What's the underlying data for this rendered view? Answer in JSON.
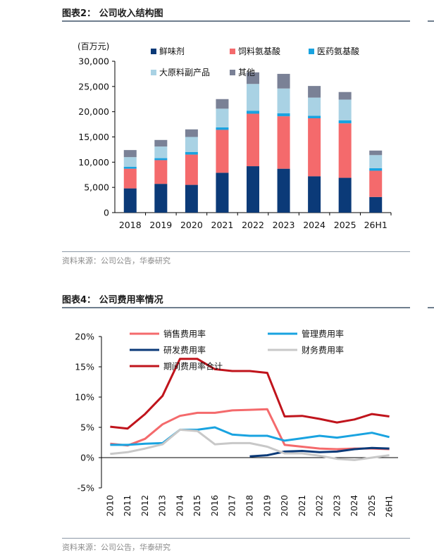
{
  "figure2": {
    "title": "图表2：  公司收入结构图",
    "source": "资料来源：公司公告，华泰研究"
  },
  "figure4": {
    "title": "图表4：  公司费用率情况",
    "source": "资料来源：公司公告，华泰研究"
  },
  "chart_data": [
    {
      "type": "bar",
      "stacked": true,
      "unit_label": "(百万元)",
      "categories": [
        "2018",
        "2019",
        "2020",
        "2021",
        "2022",
        "2023",
        "2024",
        "2025",
        "26H1"
      ],
      "ylim": [
        0,
        30000
      ],
      "yticks": [
        "0",
        "5,000",
        "10,000",
        "15,000",
        "20,000",
        "25,000",
        "30,000"
      ],
      "legend_position": "top",
      "series": [
        {
          "name": "鲜味剂",
          "color": "#0b3a78",
          "values": [
            4800,
            5700,
            5500,
            7900,
            9200,
            8700,
            7200,
            6900,
            3100
          ]
        },
        {
          "name": "饲料氨基酸",
          "color": "#f46a6c",
          "values": [
            3900,
            4700,
            6000,
            8500,
            10400,
            10400,
            11500,
            10800,
            5200
          ]
        },
        {
          "name": "医药氨基酸",
          "color": "#19a3e0",
          "values": [
            400,
            400,
            500,
            500,
            600,
            600,
            500,
            600,
            500
          ]
        },
        {
          "name": "大原料副产品",
          "color": "#a9d2e4",
          "values": [
            1900,
            2300,
            3000,
            3700,
            5300,
            4900,
            3600,
            4100,
            2600
          ]
        },
        {
          "name": "其他",
          "color": "#7a8196",
          "values": [
            1400,
            1300,
            1500,
            1900,
            2300,
            2900,
            2300,
            1500,
            900
          ]
        }
      ]
    },
    {
      "type": "line",
      "categories": [
        "2010",
        "2011",
        "2012",
        "2013",
        "2014",
        "2015",
        "2016",
        "2017",
        "2018",
        "2019",
        "2020",
        "2021",
        "2022",
        "2023",
        "2024",
        "2025",
        "26H1"
      ],
      "ylim": [
        -5,
        20
      ],
      "yticks": [
        "-5%",
        "0%",
        "5%",
        "10%",
        "15%",
        "20%"
      ],
      "ytick_values": [
        -5,
        0,
        5,
        10,
        15,
        20
      ],
      "legend_position": "top",
      "series": [
        {
          "name": "销售费用率",
          "color": "#f46a6c",
          "values": [
            2.3,
            2.0,
            3.1,
            5.5,
            6.9,
            7.4,
            7.4,
            7.8,
            7.9,
            8.0,
            2.1,
            1.8,
            1.5,
            1.4,
            1.5,
            1.5,
            1.4
          ]
        },
        {
          "name": "管理费用率",
          "color": "#19a3e0",
          "values": [
            2.1,
            2.1,
            2.3,
            2.4,
            4.6,
            4.6,
            5.0,
            3.8,
            3.6,
            3.6,
            2.8,
            3.2,
            3.6,
            3.3,
            3.7,
            4.1,
            3.4
          ]
        },
        {
          "name": "研发费用率",
          "color": "#0b3a78",
          "values": [
            null,
            null,
            null,
            null,
            null,
            null,
            null,
            null,
            0.2,
            0.4,
            1.0,
            1.1,
            0.9,
            1.0,
            1.4,
            1.6,
            1.5
          ]
        },
        {
          "name": "财务费用率",
          "color": "#c8c8c8",
          "values": [
            0.6,
            0.9,
            1.5,
            2.2,
            4.6,
            4.4,
            2.2,
            2.4,
            2.4,
            1.8,
            0.7,
            0.7,
            0.3,
            -0.2,
            -0.4,
            0.0,
            0.4
          ]
        },
        {
          "name": "期间费用率合计",
          "color": "#c0141c",
          "values": [
            5.1,
            4.8,
            7.2,
            10.2,
            16.3,
            16.3,
            14.6,
            14.3,
            14.3,
            14.0,
            6.8,
            6.9,
            6.4,
            5.8,
            6.3,
            7.2,
            6.8
          ]
        }
      ]
    }
  ]
}
